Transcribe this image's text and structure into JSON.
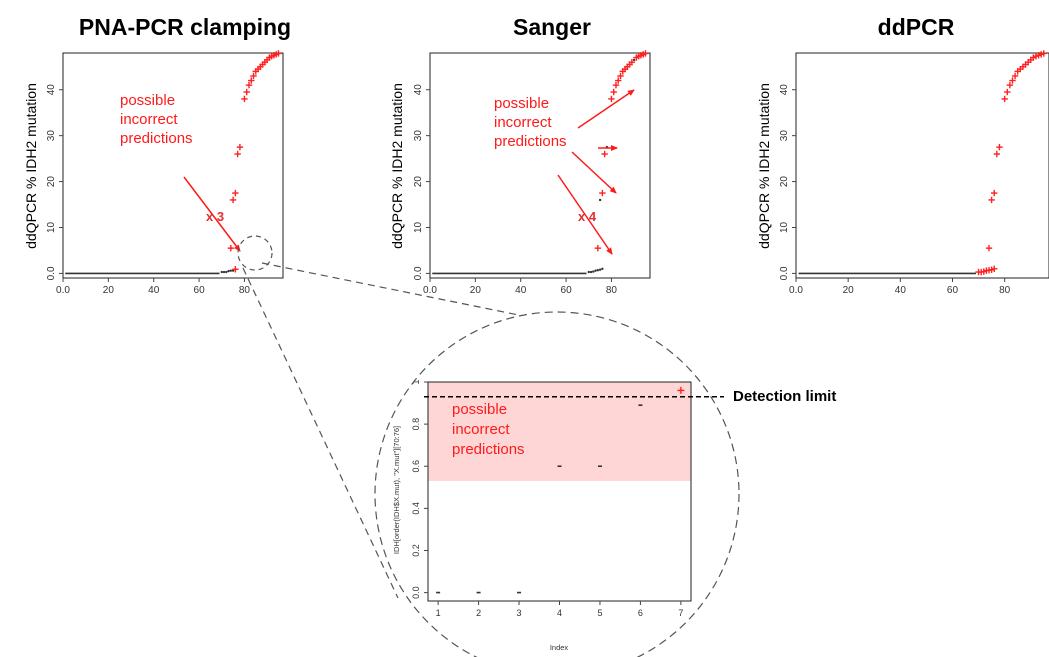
{
  "chart_data": [
    {
      "type": "scatter",
      "title": "PNA-PCR clamping",
      "ylabel": "ddQPCR % IDH2 mutation",
      "xlim": [
        0,
        97
      ],
      "ylim": [
        -1,
        48
      ],
      "xticks": [
        0,
        20,
        40,
        60,
        80
      ],
      "yticks": [
        0,
        10,
        20,
        30,
        40
      ],
      "annotation": "possible\nincorrect\npredictions",
      "multiplier": "x 3",
      "points": [
        {
          "x": 70,
          "y": 0.3,
          "c": "k"
        },
        {
          "x": 71,
          "y": 0.3,
          "c": "k"
        },
        {
          "x": 72,
          "y": 0.3,
          "c": "k"
        },
        {
          "x": 73,
          "y": 0.5,
          "c": "k"
        },
        {
          "x": 74,
          "y": 0.6,
          "c": "k"
        },
        {
          "x": 75,
          "y": 0.6,
          "c": "k"
        },
        {
          "x": 76,
          "y": 0.9,
          "c": "r"
        },
        {
          "x": 74,
          "y": 5.5,
          "c": "r"
        },
        {
          "x": 75,
          "y": 16,
          "c": "r"
        },
        {
          "x": 76,
          "y": 17.5,
          "c": "r"
        },
        {
          "x": 77,
          "y": 26,
          "c": "r"
        },
        {
          "x": 78,
          "y": 27.5,
          "c": "r"
        },
        {
          "x": 80,
          "y": 38,
          "c": "r"
        },
        {
          "x": 81,
          "y": 39.5,
          "c": "r"
        },
        {
          "x": 82,
          "y": 41,
          "c": "r"
        },
        {
          "x": 83,
          "y": 42,
          "c": "r"
        },
        {
          "x": 84,
          "y": 43,
          "c": "r"
        },
        {
          "x": 85,
          "y": 44,
          "c": "r"
        },
        {
          "x": 86,
          "y": 44.5,
          "c": "r"
        },
        {
          "x": 87,
          "y": 45,
          "c": "r"
        },
        {
          "x": 88,
          "y": 45.5,
          "c": "r"
        },
        {
          "x": 89,
          "y": 46,
          "c": "r"
        },
        {
          "x": 90,
          "y": 46.5,
          "c": "r"
        },
        {
          "x": 91,
          "y": 47,
          "c": "r"
        },
        {
          "x": 92,
          "y": 47.3,
          "c": "r"
        },
        {
          "x": 93,
          "y": 47.5,
          "c": "r"
        },
        {
          "x": 94,
          "y": 47.7,
          "c": "r"
        },
        {
          "x": 95,
          "y": 47.9,
          "c": "r"
        }
      ]
    },
    {
      "type": "scatter",
      "title": "Sanger",
      "ylabel": "ddQPCR % IDH2 mutation",
      "xlim": [
        0,
        97
      ],
      "ylim": [
        -1,
        48
      ],
      "xticks": [
        0,
        20,
        40,
        60,
        80
      ],
      "yticks": [
        0,
        10,
        20,
        30,
        40
      ],
      "annotation": "possible\nincorrect\npredictions",
      "multiplier": "x 4",
      "points": [
        {
          "x": 70,
          "y": 0.3,
          "c": "k"
        },
        {
          "x": 71,
          "y": 0.3,
          "c": "k"
        },
        {
          "x": 72,
          "y": 0.4,
          "c": "k"
        },
        {
          "x": 73,
          "y": 0.6,
          "c": "k"
        },
        {
          "x": 74,
          "y": 0.7,
          "c": "k"
        },
        {
          "x": 75,
          "y": 0.8,
          "c": "k"
        },
        {
          "x": 76,
          "y": 1.0,
          "c": "k"
        },
        {
          "x": 74,
          "y": 5.5,
          "c": "r"
        },
        {
          "x": 75,
          "y": 16,
          "c": "k"
        },
        {
          "x": 76,
          "y": 17.5,
          "c": "r"
        },
        {
          "x": 77,
          "y": 26,
          "c": "r"
        },
        {
          "x": 78,
          "y": 27.5,
          "c": "k"
        },
        {
          "x": 80,
          "y": 38,
          "c": "r"
        },
        {
          "x": 81,
          "y": 39.5,
          "c": "r"
        },
        {
          "x": 82,
          "y": 41,
          "c": "r"
        },
        {
          "x": 83,
          "y": 42,
          "c": "r"
        },
        {
          "x": 84,
          "y": 43,
          "c": "r"
        },
        {
          "x": 85,
          "y": 44,
          "c": "r"
        },
        {
          "x": 86,
          "y": 44.5,
          "c": "r"
        },
        {
          "x": 87,
          "y": 45,
          "c": "r"
        },
        {
          "x": 88,
          "y": 45.5,
          "c": "r"
        },
        {
          "x": 89,
          "y": 46,
          "c": "r"
        },
        {
          "x": 90,
          "y": 46.5,
          "c": "k"
        },
        {
          "x": 91,
          "y": 47,
          "c": "r"
        },
        {
          "x": 92,
          "y": 47.3,
          "c": "r"
        },
        {
          "x": 93,
          "y": 47.5,
          "c": "r"
        },
        {
          "x": 94,
          "y": 47.7,
          "c": "r"
        },
        {
          "x": 95,
          "y": 47.9,
          "c": "r"
        }
      ]
    },
    {
      "type": "scatter",
      "title": "ddPCR",
      "ylabel": "ddQPCR % IDH2 mutation",
      "xlim": [
        0,
        97
      ],
      "ylim": [
        -1,
        48
      ],
      "xticks": [
        0,
        20,
        40,
        60,
        80
      ],
      "yticks": [
        0,
        10,
        20,
        30,
        40
      ],
      "points": [
        {
          "x": 70,
          "y": 0.3,
          "c": "r"
        },
        {
          "x": 71,
          "y": 0.3,
          "c": "r"
        },
        {
          "x": 72,
          "y": 0.4,
          "c": "r"
        },
        {
          "x": 73,
          "y": 0.6,
          "c": "r"
        },
        {
          "x": 74,
          "y": 0.7,
          "c": "r"
        },
        {
          "x": 75,
          "y": 0.8,
          "c": "r"
        },
        {
          "x": 76,
          "y": 1.0,
          "c": "r"
        },
        {
          "x": 74,
          "y": 5.5,
          "c": "r"
        },
        {
          "x": 75,
          "y": 16,
          "c": "r"
        },
        {
          "x": 76,
          "y": 17.5,
          "c": "r"
        },
        {
          "x": 77,
          "y": 26,
          "c": "r"
        },
        {
          "x": 78,
          "y": 27.5,
          "c": "r"
        },
        {
          "x": 80,
          "y": 38,
          "c": "r"
        },
        {
          "x": 81,
          "y": 39.5,
          "c": "r"
        },
        {
          "x": 82,
          "y": 41,
          "c": "r"
        },
        {
          "x": 83,
          "y": 42,
          "c": "r"
        },
        {
          "x": 84,
          "y": 43,
          "c": "r"
        },
        {
          "x": 85,
          "y": 44,
          "c": "r"
        },
        {
          "x": 86,
          "y": 44.5,
          "c": "r"
        },
        {
          "x": 87,
          "y": 45,
          "c": "r"
        },
        {
          "x": 88,
          "y": 45.5,
          "c": "r"
        },
        {
          "x": 89,
          "y": 46,
          "c": "r"
        },
        {
          "x": 90,
          "y": 46.5,
          "c": "r"
        },
        {
          "x": 91,
          "y": 47,
          "c": "r"
        },
        {
          "x": 92,
          "y": 47.3,
          "c": "r"
        },
        {
          "x": 93,
          "y": 47.5,
          "c": "r"
        },
        {
          "x": 94,
          "y": 47.7,
          "c": "r"
        },
        {
          "x": 95,
          "y": 47.9,
          "c": "r"
        }
      ]
    },
    {
      "type": "scatter",
      "title": "",
      "ylabel": "IDH[order(IDH$X.mut), \"X.mut\"][70:76]",
      "xlabel": "Index",
      "xlim": [
        0.75,
        7.25
      ],
      "ylim": [
        -0.04,
        1.0
      ],
      "xticks": [
        1,
        2,
        3,
        4,
        5,
        6,
        7
      ],
      "yticks": [
        0.0,
        0.2,
        0.4,
        0.6,
        0.8,
        1.0
      ],
      "shaded_band": [
        0.53,
        1.0
      ],
      "detection_limit": 0.93,
      "detection_label": "Detection limit",
      "annotation": "possible\nincorrect\npredictions",
      "points": [
        {
          "x": 1,
          "y": 0.0,
          "c": "k"
        },
        {
          "x": 2,
          "y": 0.0,
          "c": "k"
        },
        {
          "x": 3,
          "y": 0.0,
          "c": "k"
        },
        {
          "x": 4,
          "y": 0.6,
          "c": "k"
        },
        {
          "x": 5,
          "y": 0.6,
          "c": "k"
        },
        {
          "x": 6,
          "y": 0.89,
          "c": "k"
        },
        {
          "x": 7,
          "y": 0.96,
          "c": "r"
        }
      ]
    }
  ],
  "colors": {
    "red": "#ff2020",
    "black": "#333333",
    "band": "#ffd6d6"
  }
}
